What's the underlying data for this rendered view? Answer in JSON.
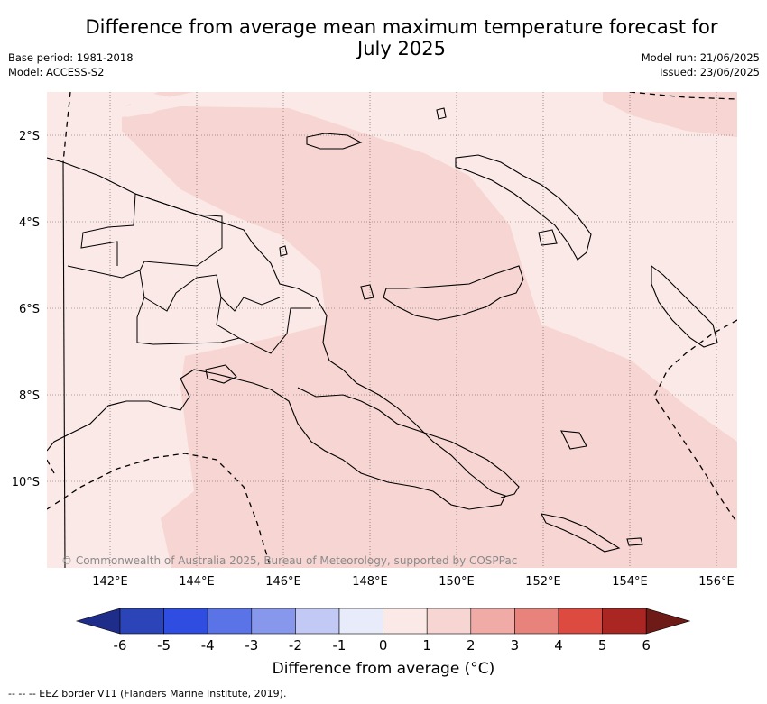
{
  "header": {
    "title_line1": "Difference from average mean maximum temperature forecast for",
    "title_line2": "July 2025",
    "base_period": "Base period: 1981-2018",
    "model": "Model: ACCESS-S2",
    "model_run": "Model run: 21/06/2025",
    "issued": "Issued: 23/06/2025"
  },
  "map": {
    "lat_labels": [
      "2°S",
      "4°S",
      "6°S",
      "8°S",
      "10°S"
    ],
    "lon_labels": [
      "142°E",
      "144°E",
      "146°E",
      "148°E",
      "150°E",
      "152°E",
      "154°E",
      "156°E"
    ],
    "copyright": "© Commonwealth of Australia 2025, Bureau of Meteorology, supported by COSPPac",
    "colors": {
      "range_0_1": "#fbe9e7",
      "range_1_2": "#f6d5d2",
      "land_border": "#000000",
      "eez": "#000000"
    }
  },
  "colorbar": {
    "tick_labels": [
      "-6",
      "-5",
      "-4",
      "-3",
      "-2",
      "-1",
      "0",
      "1",
      "2",
      "3",
      "4",
      "5",
      "6"
    ],
    "colors": [
      "#1f2d8a",
      "#2b44b8",
      "#2f4de0",
      "#5a73e6",
      "#8697ec",
      "#c2c9f4",
      "#e8ebfa",
      "#fbe9e7",
      "#f6d5d2",
      "#f0aba6",
      "#e8837c",
      "#dc4a40",
      "#aa2623",
      "#6e1a17"
    ],
    "title": "Difference from average (°C)"
  },
  "footnote": "--  --  -- EEZ border V11 (Flanders Marine Institute, 2019)."
}
